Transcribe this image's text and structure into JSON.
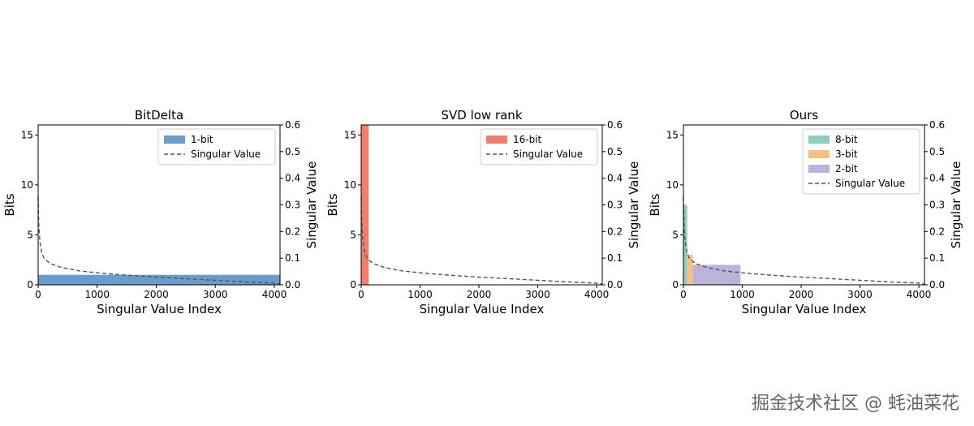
{
  "watermark": "掘金技术社区 @ 蚝油菜花",
  "chart_data": [
    {
      "type": "bar",
      "title": "BitDelta",
      "xlabel": "Singular Value Index",
      "ylabel": "Bits",
      "y2label": "Singular Value",
      "xlim": [
        0,
        4096
      ],
      "ylim": [
        0,
        16
      ],
      "y2lim": [
        0,
        0.6
      ],
      "xticks": [
        0,
        1000,
        2000,
        3000,
        4000
      ],
      "yticks": [
        0,
        5,
        10,
        15
      ],
      "y2ticks": [
        "0.0",
        "0.1",
        "0.2",
        "0.3",
        "0.4",
        "0.5",
        "0.6"
      ],
      "legend_position": "upper-right",
      "bars": [
        {
          "name": "1-bit",
          "x_start": 0,
          "x_end": 4096,
          "value": 1,
          "color": "#6a9ccb"
        }
      ],
      "singular_value_curve": {
        "name": "Singular Value",
        "color": "#555555",
        "style": "dashed",
        "x": [
          0,
          10,
          30,
          60,
          100,
          200,
          400,
          700,
          1000,
          1500,
          2000,
          2500,
          3000,
          3500,
          4000,
          4096
        ],
        "y": [
          0.33,
          0.23,
          0.16,
          0.12,
          0.1,
          0.08,
          0.065,
          0.052,
          0.045,
          0.036,
          0.029,
          0.023,
          0.017,
          0.011,
          0.006,
          0.003
        ]
      }
    },
    {
      "type": "bar",
      "title": "SVD low rank",
      "xlabel": "Singular Value Index",
      "ylabel": "Bits",
      "y2label": "Singular Value",
      "xlim": [
        0,
        4096
      ],
      "ylim": [
        0,
        16
      ],
      "y2lim": [
        0,
        0.6
      ],
      "xticks": [
        0,
        1000,
        2000,
        3000,
        4000
      ],
      "yticks": [
        0,
        5,
        10,
        15
      ],
      "y2ticks": [
        "0.0",
        "0.1",
        "0.2",
        "0.3",
        "0.4",
        "0.5",
        "0.6"
      ],
      "legend_position": "upper-right",
      "bars": [
        {
          "name": "16-bit",
          "x_start": 0,
          "x_end": 128,
          "value": 16,
          "color": "#f47c6c"
        }
      ],
      "singular_value_curve": {
        "name": "Singular Value",
        "color": "#555555",
        "style": "dashed",
        "x": [
          0,
          10,
          30,
          60,
          100,
          200,
          400,
          700,
          1000,
          1500,
          2000,
          2500,
          3000,
          3500,
          4000,
          4096
        ],
        "y": [
          0.33,
          0.23,
          0.16,
          0.12,
          0.1,
          0.08,
          0.065,
          0.052,
          0.045,
          0.036,
          0.029,
          0.023,
          0.017,
          0.011,
          0.006,
          0.003
        ]
      }
    },
    {
      "type": "bar",
      "title": "Ours",
      "xlabel": "Singular Value Index",
      "ylabel": "Bits",
      "y2label": "Singular Value",
      "xlim": [
        0,
        4096
      ],
      "ylim": [
        0,
        16
      ],
      "y2lim": [
        0,
        0.6
      ],
      "xticks": [
        0,
        1000,
        2000,
        3000,
        4000
      ],
      "yticks": [
        0,
        5,
        10,
        15
      ],
      "y2ticks": [
        "0.0",
        "0.1",
        "0.2",
        "0.3",
        "0.4",
        "0.5",
        "0.6"
      ],
      "legend_position": "upper-right",
      "bars": [
        {
          "name": "8-bit",
          "x_start": 0,
          "x_end": 64,
          "value": 8,
          "color": "#8fcdc0"
        },
        {
          "name": "3-bit",
          "x_start": 64,
          "x_end": 160,
          "value": 3,
          "color": "#f9c07e"
        },
        {
          "name": "2-bit",
          "x_start": 160,
          "x_end": 970,
          "value": 2,
          "color": "#bcb3da"
        }
      ],
      "singular_value_curve": {
        "name": "Singular Value",
        "color": "#555555",
        "style": "dashed",
        "x": [
          0,
          10,
          30,
          60,
          100,
          200,
          400,
          700,
          1000,
          1500,
          2000,
          2500,
          3000,
          3500,
          4000,
          4096
        ],
        "y": [
          0.33,
          0.23,
          0.16,
          0.12,
          0.1,
          0.08,
          0.065,
          0.052,
          0.045,
          0.036,
          0.029,
          0.023,
          0.017,
          0.011,
          0.006,
          0.003
        ]
      }
    }
  ]
}
